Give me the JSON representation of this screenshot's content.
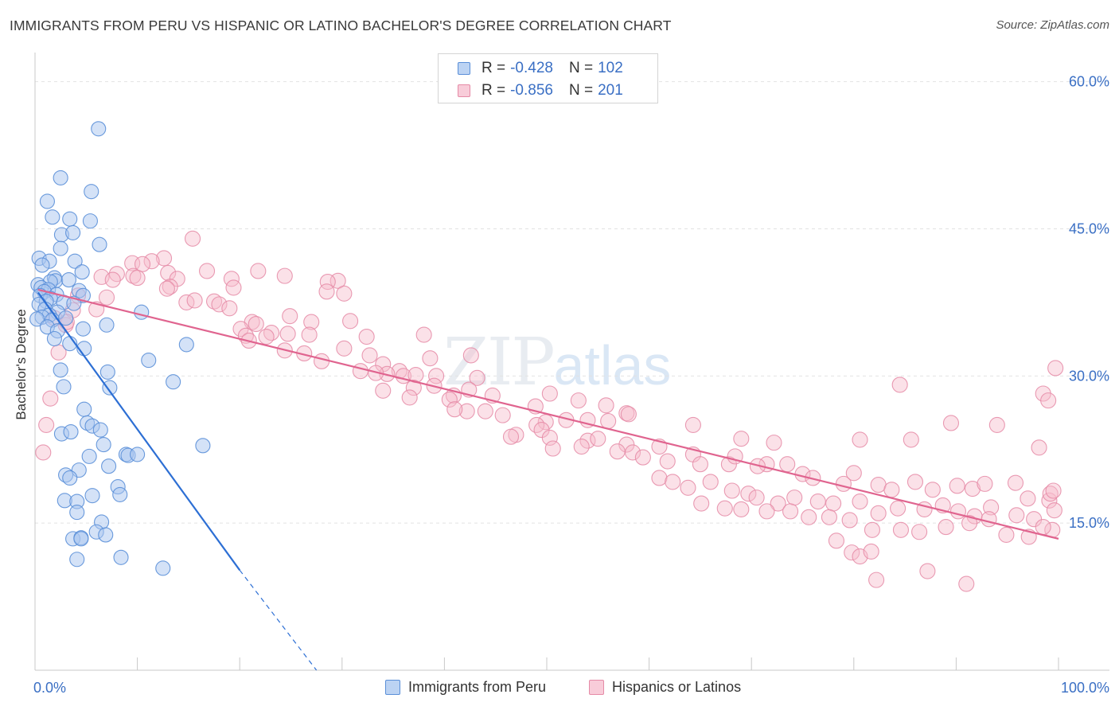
{
  "header": {
    "title": "IMMIGRANTS FROM PERU VS HISPANIC OR LATINO BACHELOR'S DEGREE CORRELATION CHART",
    "source": "Source: ZipAtlas.com"
  },
  "watermark": {
    "zip": "ZIP",
    "atlas": "atlas"
  },
  "legend_top": [
    {
      "r_label": "R =",
      "r_value": "-0.428",
      "n_label": "N =",
      "n_value": "102"
    },
    {
      "r_label": "R =",
      "r_value": "-0.856",
      "n_label": "N =",
      "n_value": "201"
    }
  ],
  "legend_bottom": [
    {
      "label": "Immigrants from Peru"
    },
    {
      "label": "Hispanics or Latinos"
    }
  ],
  "colors": {
    "blue_fill": "#a9c5ef",
    "blue_stroke": "#5a8fd8",
    "blue_line": "#2d6fd4",
    "pink_fill": "#f6bccc",
    "pink_stroke": "#e58aa6",
    "pink_line": "#e0648f",
    "axis_label": "#3a6fc4",
    "grid": "#e2e2e2"
  },
  "chart_data": {
    "type": "scatter",
    "title": "IMMIGRANTS FROM PERU VS HISPANIC OR LATINO BACHELOR'S DEGREE CORRELATION CHART",
    "xlabel": "",
    "ylabel": "Bachelor's Degree",
    "xlim": [
      0,
      100
    ],
    "ylim": [
      0,
      62
    ],
    "x_tick_labels": [
      "0.0%",
      "100.0%"
    ],
    "y_ticks": [
      15,
      30,
      45,
      60
    ],
    "y_tick_labels": [
      "15.0%",
      "30.0%",
      "45.0%",
      "60.0%"
    ],
    "series": [
      {
        "name": "Immigrants from Peru",
        "r": -0.428,
        "n": 102,
        "trend": {
          "x1": 0.3,
          "y1": 38.5,
          "x2": 20,
          "y2": 10.2,
          "dash_to_x": 27.5,
          "dash_to_y": 0
        },
        "points": [
          [
            6.2,
            55.2
          ],
          [
            2.5,
            50.2
          ],
          [
            5.5,
            48.8
          ],
          [
            1.2,
            47.8
          ],
          [
            1.7,
            46.2
          ],
          [
            3.4,
            46.0
          ],
          [
            5.4,
            45.8
          ],
          [
            2.6,
            44.4
          ],
          [
            3.7,
            44.6
          ],
          [
            6.3,
            43.4
          ],
          [
            2.5,
            43.0
          ],
          [
            0.4,
            42.0
          ],
          [
            1.4,
            41.7
          ],
          [
            0.7,
            41.3
          ],
          [
            3.9,
            41.7
          ],
          [
            4.6,
            40.6
          ],
          [
            1.9,
            40.0
          ],
          [
            2.0,
            39.7
          ],
          [
            3.3,
            39.8
          ],
          [
            1.5,
            39.6
          ],
          [
            0.3,
            39.3
          ],
          [
            0.6,
            39.0
          ],
          [
            1.3,
            38.8
          ],
          [
            0.9,
            38.6
          ],
          [
            4.3,
            38.7
          ],
          [
            0.5,
            38.2
          ],
          [
            2.1,
            38.3
          ],
          [
            4.7,
            38.2
          ],
          [
            1.5,
            37.9
          ],
          [
            1.1,
            37.6
          ],
          [
            2.8,
            37.5
          ],
          [
            3.8,
            37.4
          ],
          [
            0.4,
            37.3
          ],
          [
            1.0,
            36.8
          ],
          [
            2.2,
            36.5
          ],
          [
            1.4,
            36.2
          ],
          [
            0.7,
            36.0
          ],
          [
            0.2,
            35.8
          ],
          [
            1.7,
            35.7
          ],
          [
            3.0,
            35.9
          ],
          [
            1.2,
            35.0
          ],
          [
            4.7,
            34.8
          ],
          [
            2.2,
            34.6
          ],
          [
            7.0,
            35.2
          ],
          [
            1.9,
            33.8
          ],
          [
            3.4,
            33.3
          ],
          [
            4.8,
            32.8
          ],
          [
            10.4,
            36.5
          ],
          [
            14.8,
            33.2
          ],
          [
            11.1,
            31.6
          ],
          [
            7.1,
            30.4
          ],
          [
            2.5,
            30.6
          ],
          [
            13.5,
            29.4
          ],
          [
            7.3,
            28.8
          ],
          [
            2.8,
            28.9
          ],
          [
            4.8,
            26.6
          ],
          [
            5.1,
            25.2
          ],
          [
            5.6,
            24.9
          ],
          [
            6.4,
            24.5
          ],
          [
            2.6,
            24.1
          ],
          [
            3.5,
            24.3
          ],
          [
            6.7,
            23.0
          ],
          [
            16.4,
            22.9
          ],
          [
            8.9,
            22.0
          ],
          [
            9.1,
            21.9
          ],
          [
            10.0,
            22.0
          ],
          [
            5.3,
            21.8
          ],
          [
            7.2,
            20.8
          ],
          [
            4.3,
            20.4
          ],
          [
            3.0,
            19.9
          ],
          [
            3.4,
            19.6
          ],
          [
            8.1,
            18.7
          ],
          [
            8.3,
            17.9
          ],
          [
            5.6,
            17.8
          ],
          [
            2.9,
            17.3
          ],
          [
            4.1,
            17.2
          ],
          [
            4.1,
            16.1
          ],
          [
            6.5,
            15.1
          ],
          [
            6.0,
            14.1
          ],
          [
            6.9,
            13.8
          ],
          [
            3.7,
            13.4
          ],
          [
            4.5,
            13.5
          ],
          [
            4.5,
            13.4
          ],
          [
            4.1,
            11.3
          ],
          [
            8.4,
            11.5
          ],
          [
            12.5,
            10.4
          ]
        ]
      },
      {
        "name": "Hispanics or Latinos",
        "r": -0.856,
        "n": 201,
        "trend": {
          "x1": 0.3,
          "y1": 38.8,
          "x2": 100,
          "y2": 13.4
        },
        "points": [
          [
            15.4,
            44.0
          ],
          [
            12.6,
            42.0
          ],
          [
            11.4,
            41.7
          ],
          [
            9.5,
            41.5
          ],
          [
            10.5,
            41.4
          ],
          [
            21.8,
            40.7
          ],
          [
            16.8,
            40.7
          ],
          [
            13.0,
            40.5
          ],
          [
            8.0,
            40.4
          ],
          [
            9.6,
            40.2
          ],
          [
            6.5,
            40.1
          ],
          [
            10.0,
            40.0
          ],
          [
            24.4,
            40.2
          ],
          [
            7.6,
            39.8
          ],
          [
            13.9,
            39.9
          ],
          [
            19.2,
            39.9
          ],
          [
            29.6,
            39.7
          ],
          [
            28.6,
            39.6
          ],
          [
            13.2,
            39.1
          ],
          [
            19.4,
            39.0
          ],
          [
            12.9,
            38.9
          ],
          [
            28.5,
            38.6
          ],
          [
            30.2,
            38.4
          ],
          [
            4.2,
            38.2
          ],
          [
            7.0,
            38.0
          ],
          [
            14.8,
            37.5
          ],
          [
            17.5,
            37.6
          ],
          [
            15.6,
            37.7
          ],
          [
            18.0,
            37.3
          ],
          [
            19.0,
            36.9
          ],
          [
            3.7,
            36.7
          ],
          [
            6.0,
            36.8
          ],
          [
            1.9,
            35.9
          ],
          [
            3.0,
            35.2
          ],
          [
            24.9,
            36.1
          ],
          [
            21.2,
            35.5
          ],
          [
            27.0,
            35.5
          ],
          [
            21.6,
            35.3
          ],
          [
            20.1,
            34.8
          ],
          [
            23.1,
            34.4
          ],
          [
            24.7,
            34.3
          ],
          [
            20.6,
            34.1
          ],
          [
            22.6,
            34.0
          ],
          [
            32.4,
            34.0
          ],
          [
            38.0,
            34.2
          ],
          [
            26.8,
            34.2
          ],
          [
            20.9,
            33.6
          ],
          [
            30.2,
            32.8
          ],
          [
            24.4,
            32.6
          ],
          [
            26.3,
            32.3
          ],
          [
            32.7,
            32.1
          ],
          [
            34.0,
            31.2
          ],
          [
            28.0,
            31.5
          ],
          [
            38.6,
            31.8
          ],
          [
            42.6,
            32.1
          ],
          [
            35.6,
            30.5
          ],
          [
            34.4,
            30.2
          ],
          [
            36.0,
            30.0
          ],
          [
            31.8,
            30.5
          ],
          [
            33.3,
            30.3
          ],
          [
            37.2,
            30.1
          ],
          [
            39.2,
            30.0
          ],
          [
            43.2,
            29.8
          ],
          [
            34.0,
            28.5
          ],
          [
            37.0,
            28.8
          ],
          [
            39.0,
            29.0
          ],
          [
            36.6,
            27.8
          ],
          [
            40.9,
            28.0
          ],
          [
            42.4,
            28.6
          ],
          [
            44.7,
            28.0
          ],
          [
            50.3,
            28.2
          ],
          [
            53.1,
            27.5
          ],
          [
            40.5,
            27.6
          ],
          [
            42.2,
            26.4
          ],
          [
            44.0,
            26.4
          ],
          [
            41.0,
            26.6
          ],
          [
            45.7,
            26.0
          ],
          [
            48.9,
            26.9
          ],
          [
            55.8,
            27.0
          ],
          [
            57.8,
            26.2
          ],
          [
            58.0,
            26.1
          ],
          [
            49.9,
            25.3
          ],
          [
            51.9,
            25.5
          ],
          [
            54.0,
            25.5
          ],
          [
            56.0,
            25.4
          ],
          [
            49.0,
            25.0
          ],
          [
            47.0,
            24.0
          ],
          [
            49.5,
            24.5
          ],
          [
            64.3,
            25.0
          ],
          [
            50.3,
            23.7
          ],
          [
            46.5,
            23.8
          ],
          [
            54.0,
            23.4
          ],
          [
            55.0,
            23.6
          ],
          [
            53.4,
            22.8
          ],
          [
            57.8,
            23.0
          ],
          [
            50.6,
            22.6
          ],
          [
            56.9,
            22.3
          ],
          [
            58.4,
            22.2
          ],
          [
            61.0,
            22.8
          ],
          [
            72.2,
            23.2
          ],
          [
            69.0,
            23.6
          ],
          [
            80.6,
            23.5
          ],
          [
            85.6,
            23.5
          ],
          [
            89.5,
            25.2
          ],
          [
            94.0,
            25.0
          ],
          [
            98.1,
            22.7
          ],
          [
            59.4,
            21.7
          ],
          [
            61.8,
            21.3
          ],
          [
            64.3,
            22.0
          ],
          [
            65.0,
            21.0
          ],
          [
            67.8,
            21.0
          ],
          [
            68.4,
            21.8
          ],
          [
            71.5,
            21.0
          ],
          [
            70.6,
            20.8
          ],
          [
            73.5,
            21.0
          ],
          [
            75.0,
            20.0
          ],
          [
            76.0,
            19.6
          ],
          [
            79.0,
            19.0
          ],
          [
            80.0,
            20.1
          ],
          [
            82.4,
            18.9
          ],
          [
            83.7,
            18.4
          ],
          [
            86.0,
            19.2
          ],
          [
            87.7,
            18.4
          ],
          [
            90.1,
            18.8
          ],
          [
            91.6,
            18.5
          ],
          [
            92.8,
            19.0
          ],
          [
            95.8,
            19.1
          ],
          [
            99.1,
            17.3
          ],
          [
            61.0,
            19.6
          ],
          [
            62.3,
            19.2
          ],
          [
            63.8,
            18.6
          ],
          [
            66.0,
            19.2
          ],
          [
            68.1,
            18.3
          ],
          [
            69.7,
            18.0
          ],
          [
            70.5,
            17.6
          ],
          [
            72.6,
            17.0
          ],
          [
            74.2,
            17.6
          ],
          [
            76.5,
            17.2
          ],
          [
            78.0,
            17.0
          ],
          [
            80.6,
            17.2
          ],
          [
            82.4,
            16.0
          ],
          [
            84.3,
            16.5
          ],
          [
            86.9,
            16.4
          ],
          [
            88.7,
            16.8
          ],
          [
            90.2,
            16.2
          ],
          [
            91.8,
            15.7
          ],
          [
            93.4,
            16.6
          ],
          [
            95.9,
            15.8
          ],
          [
            97.6,
            15.4
          ],
          [
            99.6,
            16.3
          ],
          [
            65.1,
            17.0
          ],
          [
            67.4,
            16.5
          ],
          [
            69.0,
            16.4
          ],
          [
            71.5,
            16.2
          ],
          [
            73.8,
            16.2
          ],
          [
            75.6,
            15.6
          ],
          [
            77.6,
            15.6
          ],
          [
            79.6,
            15.3
          ],
          [
            81.8,
            14.3
          ],
          [
            84.6,
            14.3
          ],
          [
            86.4,
            14.1
          ],
          [
            89.0,
            14.6
          ],
          [
            91.3,
            15.0
          ],
          [
            93.2,
            15.4
          ],
          [
            94.9,
            13.8
          ],
          [
            97.1,
            13.6
          ],
          [
            99.4,
            14.3
          ],
          [
            78.3,
            13.2
          ],
          [
            79.8,
            12.0
          ],
          [
            80.6,
            11.6
          ],
          [
            81.7,
            12.1
          ],
          [
            82.2,
            9.2
          ],
          [
            87.2,
            10.1
          ],
          [
            91.0,
            8.8
          ],
          [
            98.5,
            14.6
          ],
          [
            97.0,
            17.5
          ],
          [
            99.2,
            18.0
          ],
          [
            99.5,
            18.3
          ],
          [
            99.7,
            30.8
          ],
          [
            98.5,
            28.2
          ],
          [
            99.0,
            27.5
          ],
          [
            84.5,
            29.1
          ],
          [
            30.8,
            35.6
          ],
          [
            0.8,
            22.2
          ],
          [
            1.1,
            25.0
          ],
          [
            1.5,
            27.7
          ],
          [
            2.3,
            32.4
          ],
          [
            3.1,
            35.5
          ]
        ]
      }
    ]
  }
}
